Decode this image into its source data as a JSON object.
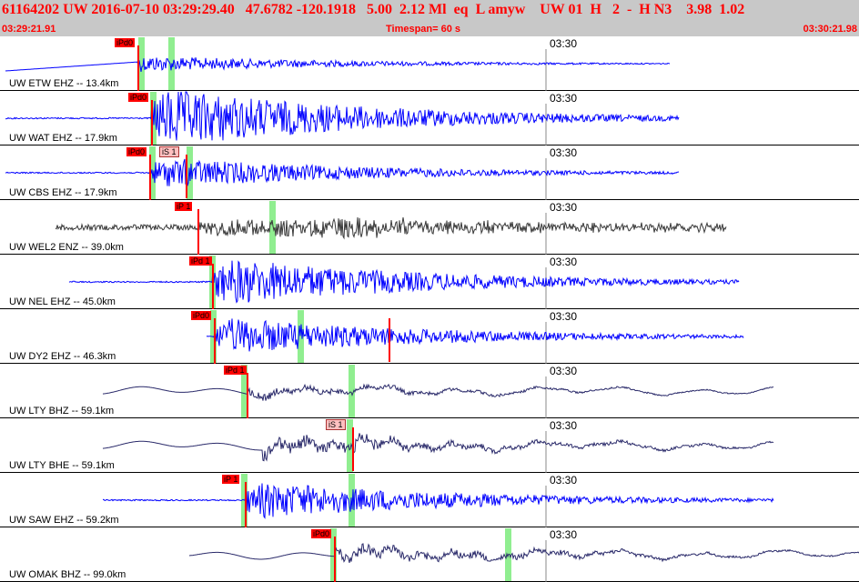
{
  "header": {
    "info_line": "61164202 UW 2016-07-10 03:29:29.40   47.6782 -120.1918   5.00  2.12 Ml  eq  L amyw    UW 01  H   2  -  H N3    3.98  1.02",
    "start_time": "03:29:21.91",
    "timespan": "Timespan=  60 s",
    "end_time": "03:30:21.98"
  },
  "time_axis": {
    "tick_label": "03:30"
  },
  "colors": {
    "trace_blue": "#0000ff",
    "trace_dark": "#2a2a6a",
    "trace_gray": "#3a3a3a",
    "pick_red": "#ff0000",
    "window_green": "#90ee90",
    "header_bg": "#c8c8c8"
  },
  "traces": [
    {
      "label": "UW ETW EHZ -- 13.4km",
      "pick_label": "iPd0",
      "color": "blue",
      "start": 0.0,
      "end": 0.78,
      "onset": 0.32,
      "amp": 0.25,
      "style": "emergent"
    },
    {
      "label": "UW WAT EHZ -- 17.9km",
      "pick_label": "iPd0",
      "color": "blue",
      "start": 0.0,
      "end": 0.79,
      "onset": 0.175,
      "amp": 0.9,
      "style": "impulsive"
    },
    {
      "label": "UW CBS EHZ -- 17.9km",
      "pick_label": "iPd0",
      "s_label": "iS 1",
      "color": "blue",
      "start": 0.0,
      "end": 0.79,
      "onset": 0.175,
      "amp": 0.45,
      "style": "impulsive"
    },
    {
      "label": "UW WEL2 ENZ -- 39.0km",
      "pick_label": "iP 1",
      "color": "gray",
      "start": 0.065,
      "end": 0.845,
      "onset": 0.23,
      "amp": 0.35,
      "style": "noisy"
    },
    {
      "label": "UW NEL EHZ -- 45.0km",
      "pick_label": "iPd 1",
      "color": "blue",
      "start": 0.08,
      "end": 0.86,
      "onset": 0.25,
      "amp": 0.7,
      "style": "impulsive"
    },
    {
      "label": "UW DY2 EHZ -- 46.3km",
      "pick_label": "iPd0",
      "color": "blue",
      "start": 0.24,
      "end": 0.865,
      "onset": 0.25,
      "amp": 0.55,
      "style": "impulsive"
    },
    {
      "label": "UW LTY BHZ -- 59.1km",
      "pick_label": "iPd 1",
      "color": "dark",
      "start": 0.12,
      "end": 0.9,
      "onset": 0.29,
      "amp": 0.25,
      "style": "broadband"
    },
    {
      "label": "UW LTY BHE -- 59.1km",
      "pick_label": "",
      "s_label": "iS 1",
      "color": "dark",
      "start": 0.12,
      "end": 0.9,
      "onset": 0.29,
      "amp": 0.45,
      "style": "broadband"
    },
    {
      "label": "UW SAW EHZ -- 59.2km",
      "pick_label": "iP 1",
      "color": "blue",
      "start": 0.12,
      "end": 0.9,
      "onset": 0.29,
      "amp": 0.55,
      "style": "impulsive"
    },
    {
      "label": "UW OMAK BHZ -- 99.0km",
      "pick_label": "iPd0",
      "color": "dark",
      "start": 0.22,
      "end": 1.0,
      "onset": 0.385,
      "amp": 0.4,
      "style": "broadband"
    }
  ]
}
